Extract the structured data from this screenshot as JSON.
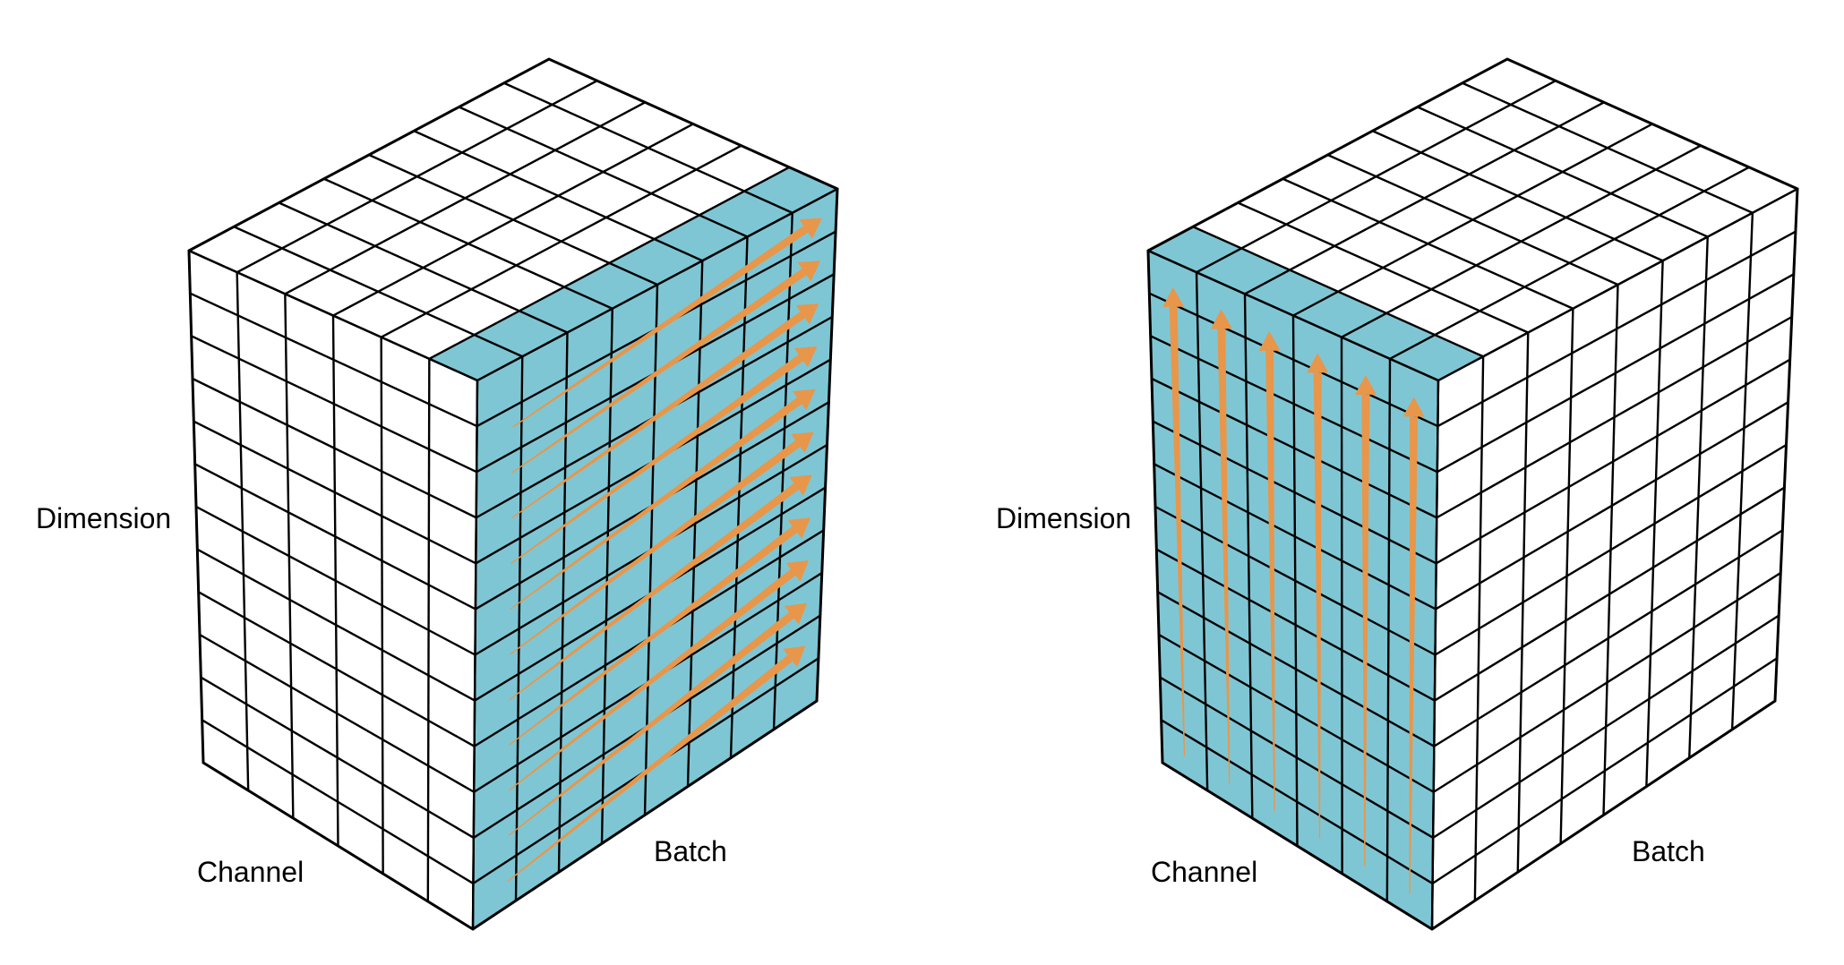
{
  "diagrams": [
    {
      "variant": "batch-wise",
      "labels": {
        "dimension": "Dimension",
        "channel": "Channel",
        "batch": "Batch"
      },
      "highlight_color": "#7fc6d4",
      "arrow_color": "#e8964a",
      "grid": {
        "rows": 12,
        "left_cols": 6,
        "right_cols": 8
      },
      "arrow_direction": "along-batch"
    },
    {
      "variant": "channel-wise",
      "labels": {
        "dimension": "Dimension",
        "channel": "Channel",
        "batch": "Batch"
      },
      "highlight_color": "#7fc6d4",
      "arrow_color": "#e8964a",
      "grid": {
        "rows": 12,
        "left_cols": 6,
        "right_cols": 8
      },
      "arrow_direction": "along-dimension"
    }
  ],
  "colors": {
    "line": "#000000",
    "face": "#ffffff"
  }
}
